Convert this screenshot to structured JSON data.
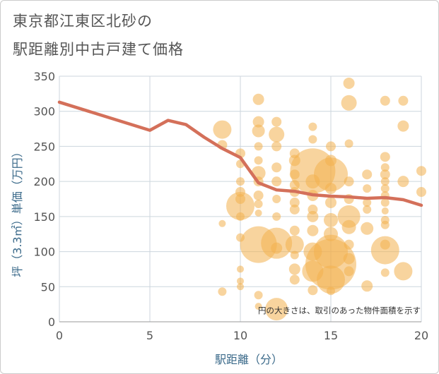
{
  "chart_data": {
    "type": "scatter",
    "title_lines": [
      "東京都江東区北砂の",
      "駅距離別中古戸建て価格"
    ],
    "xlabel": "駅距離（分）",
    "ylabel": "坪（3.3㎡）単価（万円）",
    "xlim": [
      0,
      20
    ],
    "ylim": [
      0,
      350
    ],
    "xticks": [
      0,
      5,
      10,
      15,
      20
    ],
    "yticks": [
      0,
      50,
      100,
      150,
      200,
      250,
      300,
      350
    ],
    "grid": true,
    "note": "円の大きさは、取引のあった物件面積を示す",
    "colors": {
      "bubble": "#f2b04f",
      "line": "#d4705a",
      "grid": "#ccd6dd",
      "label": "#3b6a8a"
    },
    "bubbles": [
      {
        "x": 9,
        "y": 43,
        "s": 6
      },
      {
        "x": 9,
        "y": 140,
        "s": 5
      },
      {
        "x": 9,
        "y": 274,
        "s": 13
      },
      {
        "x": 9,
        "y": 252,
        "s": 7
      },
      {
        "x": 10,
        "y": 240,
        "s": 7
      },
      {
        "x": 10,
        "y": 225,
        "s": 6
      },
      {
        "x": 10,
        "y": 200,
        "s": 6
      },
      {
        "x": 10,
        "y": 185,
        "s": 7
      },
      {
        "x": 10,
        "y": 175,
        "s": 7
      },
      {
        "x": 10,
        "y": 165,
        "s": 20
      },
      {
        "x": 10,
        "y": 150,
        "s": 6
      },
      {
        "x": 10,
        "y": 120,
        "s": 6
      },
      {
        "x": 10,
        "y": 75,
        "s": 5
      },
      {
        "x": 10,
        "y": 58,
        "s": 5
      },
      {
        "x": 10,
        "y": 50,
        "s": 5
      },
      {
        "x": 11,
        "y": 317,
        "s": 8
      },
      {
        "x": 11,
        "y": 285,
        "s": 8
      },
      {
        "x": 11,
        "y": 272,
        "s": 9
      },
      {
        "x": 11,
        "y": 250,
        "s": 6
      },
      {
        "x": 11,
        "y": 230,
        "s": 6
      },
      {
        "x": 11,
        "y": 212,
        "s": 10
      },
      {
        "x": 11,
        "y": 200,
        "s": 7
      },
      {
        "x": 11,
        "y": 180,
        "s": 7
      },
      {
        "x": 11,
        "y": 168,
        "s": 6
      },
      {
        "x": 11,
        "y": 155,
        "s": 5
      },
      {
        "x": 11,
        "y": 110,
        "s": 26
      },
      {
        "x": 11,
        "y": 38,
        "s": 6
      },
      {
        "x": 11,
        "y": 22,
        "s": 5
      },
      {
        "x": 12,
        "y": 285,
        "s": 7
      },
      {
        "x": 12,
        "y": 267,
        "s": 11
      },
      {
        "x": 12,
        "y": 250,
        "s": 7
      },
      {
        "x": 12,
        "y": 220,
        "s": 7
      },
      {
        "x": 12,
        "y": 200,
        "s": 7
      },
      {
        "x": 12,
        "y": 175,
        "s": 6
      },
      {
        "x": 12,
        "y": 150,
        "s": 6
      },
      {
        "x": 12,
        "y": 112,
        "s": 22
      },
      {
        "x": 12,
        "y": 105,
        "s": 8
      },
      {
        "x": 12,
        "y": 18,
        "s": 16
      },
      {
        "x": 13,
        "y": 240,
        "s": 7
      },
      {
        "x": 13,
        "y": 230,
        "s": 8
      },
      {
        "x": 13,
        "y": 210,
        "s": 7
      },
      {
        "x": 13,
        "y": 195,
        "s": 7
      },
      {
        "x": 13,
        "y": 185,
        "s": 7
      },
      {
        "x": 13,
        "y": 170,
        "s": 7
      },
      {
        "x": 13,
        "y": 160,
        "s": 7
      },
      {
        "x": 13,
        "y": 130,
        "s": 7
      },
      {
        "x": 13,
        "y": 110,
        "s": 13
      },
      {
        "x": 13,
        "y": 95,
        "s": 6
      },
      {
        "x": 13,
        "y": 75,
        "s": 8
      },
      {
        "x": 13,
        "y": 60,
        "s": 7
      },
      {
        "x": 14,
        "y": 278,
        "s": 6
      },
      {
        "x": 14,
        "y": 260,
        "s": 6
      },
      {
        "x": 14,
        "y": 215,
        "s": 32
      },
      {
        "x": 14,
        "y": 200,
        "s": 10
      },
      {
        "x": 14,
        "y": 180,
        "s": 8
      },
      {
        "x": 14,
        "y": 160,
        "s": 7
      },
      {
        "x": 14,
        "y": 150,
        "s": 8
      },
      {
        "x": 14,
        "y": 130,
        "s": 8
      },
      {
        "x": 14,
        "y": 100,
        "s": 13
      },
      {
        "x": 14,
        "y": 72,
        "s": 15
      },
      {
        "x": 14,
        "y": 45,
        "s": 7
      },
      {
        "x": 15,
        "y": 250,
        "s": 7
      },
      {
        "x": 15,
        "y": 230,
        "s": 8
      },
      {
        "x": 15,
        "y": 210,
        "s": 24
      },
      {
        "x": 15,
        "y": 190,
        "s": 8
      },
      {
        "x": 15,
        "y": 170,
        "s": 8
      },
      {
        "x": 15,
        "y": 145,
        "s": 10
      },
      {
        "x": 15,
        "y": 125,
        "s": 10
      },
      {
        "x": 15,
        "y": 100,
        "s": 24
      },
      {
        "x": 15,
        "y": 82,
        "s": 36
      },
      {
        "x": 15,
        "y": 60,
        "s": 20
      },
      {
        "x": 15,
        "y": 44,
        "s": 6
      },
      {
        "x": 16,
        "y": 340,
        "s": 8
      },
      {
        "x": 16,
        "y": 312,
        "s": 11
      },
      {
        "x": 16,
        "y": 254,
        "s": 6
      },
      {
        "x": 16,
        "y": 200,
        "s": 7
      },
      {
        "x": 16,
        "y": 175,
        "s": 7
      },
      {
        "x": 16,
        "y": 150,
        "s": 16
      },
      {
        "x": 16,
        "y": 135,
        "s": 10
      },
      {
        "x": 16,
        "y": 110,
        "s": 7
      },
      {
        "x": 16,
        "y": 90,
        "s": 8
      },
      {
        "x": 16,
        "y": 72,
        "s": 7
      },
      {
        "x": 17,
        "y": 210,
        "s": 7
      },
      {
        "x": 17,
        "y": 190,
        "s": 6
      },
      {
        "x": 17,
        "y": 170,
        "s": 6
      },
      {
        "x": 17,
        "y": 160,
        "s": 6
      },
      {
        "x": 17,
        "y": 133,
        "s": 9
      },
      {
        "x": 17,
        "y": 51,
        "s": 8
      },
      {
        "x": 18,
        "y": 315,
        "s": 7
      },
      {
        "x": 18,
        "y": 235,
        "s": 7
      },
      {
        "x": 18,
        "y": 220,
        "s": 6
      },
      {
        "x": 18,
        "y": 210,
        "s": 7
      },
      {
        "x": 18,
        "y": 200,
        "s": 6
      },
      {
        "x": 18,
        "y": 190,
        "s": 6
      },
      {
        "x": 18,
        "y": 180,
        "s": 6
      },
      {
        "x": 18,
        "y": 170,
        "s": 6
      },
      {
        "x": 18,
        "y": 158,
        "s": 5
      },
      {
        "x": 18,
        "y": 145,
        "s": 6
      },
      {
        "x": 18,
        "y": 138,
        "s": 6
      },
      {
        "x": 18,
        "y": 110,
        "s": 7
      },
      {
        "x": 18,
        "y": 102,
        "s": 20
      },
      {
        "x": 18,
        "y": 70,
        "s": 6
      },
      {
        "x": 19,
        "y": 315,
        "s": 7
      },
      {
        "x": 19,
        "y": 279,
        "s": 8
      },
      {
        "x": 19,
        "y": 200,
        "s": 8
      },
      {
        "x": 19,
        "y": 72,
        "s": 13
      },
      {
        "x": 20,
        "y": 215,
        "s": 7
      },
      {
        "x": 20,
        "y": 185,
        "s": 7
      }
    ],
    "series": [
      {
        "type": "line",
        "x": [
          0,
          5,
          6,
          7,
          8,
          9,
          10,
          11,
          12,
          13,
          14,
          15,
          16,
          17,
          18,
          19,
          20
        ],
        "values": [
          313,
          273,
          287,
          281,
          263,
          247,
          234,
          198,
          188,
          186,
          181,
          179,
          178,
          176,
          177,
          174,
          166
        ]
      }
    ]
  }
}
